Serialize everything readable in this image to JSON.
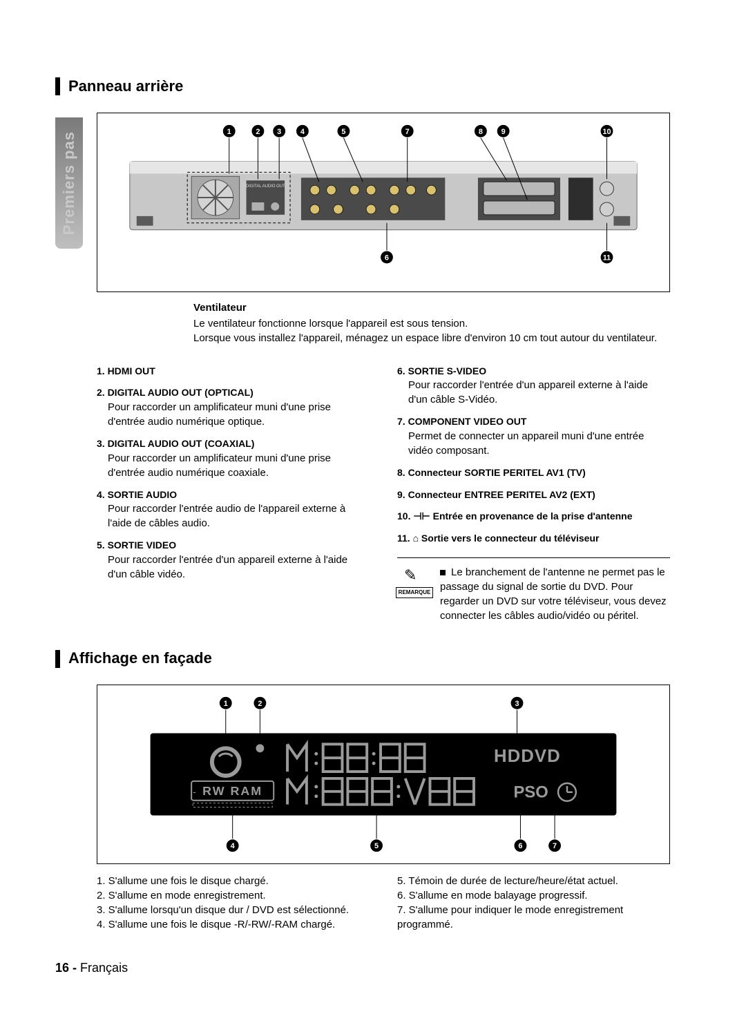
{
  "side_tab": "Premiers pas",
  "section1": {
    "title": "Panneau arrière",
    "callouts_top": [
      "1",
      "2",
      "3",
      "4",
      "5",
      "7",
      "8",
      "9",
      "10"
    ],
    "callouts_bottom": [
      "6",
      "11"
    ],
    "vent": {
      "title": "Ventilateur",
      "body": "Le ventilateur fonctionne lorsque l'appareil est sous tension.\nLorsque vous installez l'appareil, ménagez un espace libre d'environ 10 cm tout autour du ventilateur."
    },
    "left_items": [
      {
        "head": "1. HDMI OUT",
        "body": ""
      },
      {
        "head": "2. DIGITAL AUDIO OUT (OPTICAL)",
        "body": "Pour raccorder un amplificateur muni d'une prise d'entrée audio numérique optique."
      },
      {
        "head": "3. DIGITAL AUDIO OUT (COAXIAL)",
        "body": "Pour raccorder un amplificateur muni d'une prise d'entrée audio numérique coaxiale."
      },
      {
        "head": "4. SORTIE AUDIO",
        "body": "Pour raccorder l'entrée audio de l'appareil externe à l'aide de câbles audio."
      },
      {
        "head": "5. SORTIE VIDEO",
        "body": "Pour raccorder l'entrée d'un appareil externe à l'aide d'un câble vidéo."
      }
    ],
    "right_items": [
      {
        "head": "6. SORTIE S-VIDEO",
        "body": "Pour raccorder l'entrée d'un appareil externe à l'aide d'un câble S-Vidéo."
      },
      {
        "head": "7. COMPONENT VIDEO OUT",
        "body": "Permet de connecter un appareil muni d'une entrée vidéo composant."
      },
      {
        "head": "8. Connecteur SORTIE PERITEL AV1 (TV)",
        "body": ""
      },
      {
        "head": "9. Connecteur ENTREE PERITEL AV2 (EXT)",
        "body": ""
      },
      {
        "head": "10.  ⊣⊢  Entrée en provenance de la prise d'antenne",
        "body": ""
      },
      {
        "head": "11.  ⌂  Sortie vers le connecteur du téléviseur",
        "body": ""
      }
    ],
    "note_label": "REMARQUE",
    "note_text": "Le branchement de l'antenne ne permet pas le passage du signal de sortie du DVD. Pour regarder un DVD sur votre téléviseur, vous devez connecter les câbles audio/vidéo ou péritel."
  },
  "section2": {
    "title": "Affichage en façade",
    "callouts_top": [
      "1",
      "2",
      "3"
    ],
    "callouts_bottom": [
      "4",
      "5",
      "6",
      "7"
    ],
    "display_labels": {
      "rw_ram": "RW RAM",
      "hddvd": "HDDVD",
      "pso": "PSO"
    },
    "left_list": [
      "1. S'allume une fois le disque chargé.",
      "2. S'allume en mode enregistrement.",
      "3. S'allume lorsqu'un disque dur / DVD est sélectionné.",
      "4. S'allume une fois le disque -R/-RW/-RAM chargé."
    ],
    "right_list": [
      "5. Témoin de durée de lecture/heure/état actuel.",
      "6. S'allume en mode balayage progressif.",
      "7. S'allume pour indiquer le mode enregistrement programmé."
    ]
  },
  "page_number": "16 -",
  "page_lang": "Français",
  "colors": {
    "text": "#000000",
    "bg": "#ffffff",
    "tab_grad_top": "#7a7a7a",
    "tab_grad_bot": "#bfbfbf",
    "device_body": "#c8c8c8",
    "device_dark": "#4a4a4a",
    "display_bg": "#000000",
    "display_seg": "#9a9a9a"
  }
}
